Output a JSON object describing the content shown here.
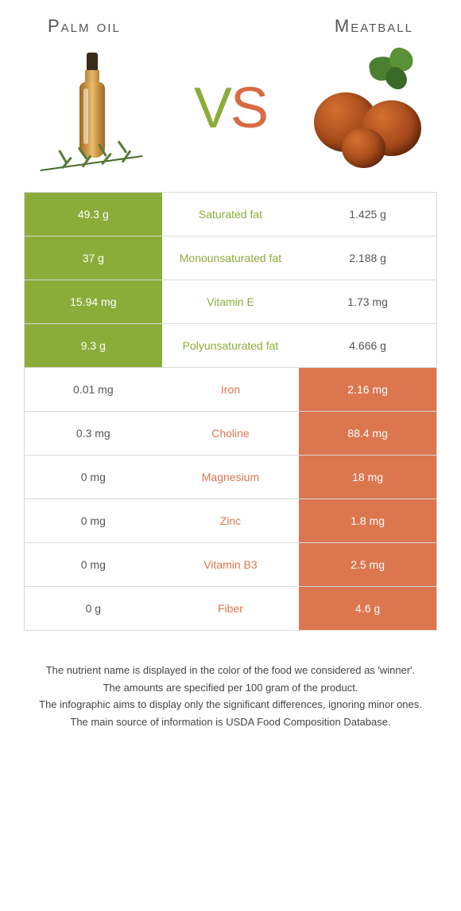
{
  "header": {
    "left_title": "Palm oil",
    "right_title": "Meatball",
    "vs_v": "V",
    "vs_s": "S"
  },
  "colors": {
    "green": "#8aad3a",
    "orange": "#dc764f",
    "border": "#d9d9d9",
    "text": "#555555"
  },
  "table": {
    "rows": [
      {
        "left": "49.3 g",
        "label": "Saturated fat",
        "right": "1.425 g",
        "winner": "left"
      },
      {
        "left": "37 g",
        "label": "Monounsaturated fat",
        "right": "2.188 g",
        "winner": "left"
      },
      {
        "left": "15.94 mg",
        "label": "Vitamin E",
        "right": "1.73 mg",
        "winner": "left"
      },
      {
        "left": "9.3 g",
        "label": "Polyunsaturated fat",
        "right": "4.666 g",
        "winner": "left"
      },
      {
        "left": "0.01 mg",
        "label": "Iron",
        "right": "2.16 mg",
        "winner": "right"
      },
      {
        "left": "0.3 mg",
        "label": "Choline",
        "right": "88.4 mg",
        "winner": "right"
      },
      {
        "left": "0 mg",
        "label": "Magnesium",
        "right": "18 mg",
        "winner": "right"
      },
      {
        "left": "0 mg",
        "label": "Zinc",
        "right": "1.8 mg",
        "winner": "right"
      },
      {
        "left": "0 mg",
        "label": "Vitamin B3",
        "right": "2.5 mg",
        "winner": "right"
      },
      {
        "left": "0 g",
        "label": "Fiber",
        "right": "4.6 g",
        "winner": "right"
      }
    ]
  },
  "footnotes": {
    "line1": "The nutrient name is displayed in the color of the food we considered as 'winner'.",
    "line2": "The amounts are specified per 100 gram of the product.",
    "line3": "The infographic aims to display only the significant differences, ignoring minor ones.",
    "line4": "The main source of information is USDA Food Composition Database."
  }
}
